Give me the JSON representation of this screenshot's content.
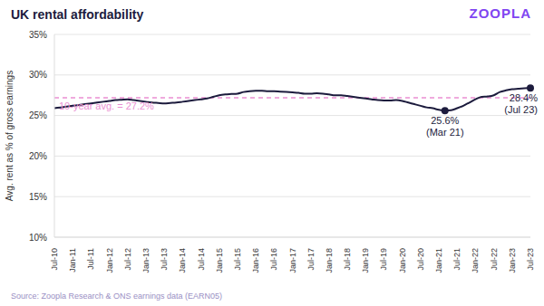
{
  "chart_data": {
    "type": "line",
    "title": "UK rental affordability",
    "logo": "ZOOPLA",
    "y_label": "Avg. rent as % of gross earnings",
    "source": "Source: Zoopla Research & ONS earnings data (EARN05)",
    "categories": [
      "Jul-10",
      null,
      null,
      "Jan-11",
      null,
      null,
      "Jul-11",
      null,
      null,
      "Jan-12",
      null,
      null,
      "Jul-12",
      null,
      null,
      "Jan-13",
      null,
      null,
      "Jul-13",
      null,
      null,
      "Jan-14",
      null,
      null,
      "Jul-14",
      null,
      null,
      "Jan-15",
      null,
      null,
      "Jul-15",
      null,
      null,
      "Jan-16",
      null,
      null,
      "Jul-16",
      null,
      null,
      "Jan-17",
      null,
      null,
      "Jul-17",
      null,
      null,
      "Jan-18",
      null,
      null,
      "Jul-18",
      null,
      null,
      "Jan-19",
      null,
      null,
      "Jul-19",
      null,
      null,
      "Jan-20",
      null,
      null,
      "Jul-20",
      null,
      null,
      "Jan-21",
      null,
      null,
      "Jul-21",
      null,
      null,
      "Jan-22",
      null,
      null,
      "Jul-22",
      null,
      null,
      "Jan-23",
      null,
      null,
      "Jul-23"
    ],
    "values": [
      25.9,
      26.0,
      26.1,
      26.2,
      26.3,
      26.4,
      26.5,
      26.6,
      26.7,
      26.8,
      26.9,
      26.95,
      27.0,
      26.9,
      26.8,
      26.7,
      26.6,
      26.55,
      26.5,
      26.55,
      26.6,
      26.7,
      26.8,
      26.9,
      27.0,
      27.1,
      27.3,
      27.5,
      27.6,
      27.65,
      27.7,
      27.9,
      28.0,
      28.05,
      28.05,
      28.0,
      28.0,
      27.95,
      27.9,
      27.85,
      27.8,
      27.7,
      27.7,
      27.75,
      27.7,
      27.6,
      27.5,
      27.5,
      27.4,
      27.3,
      27.2,
      27.1,
      27.0,
      26.9,
      26.85,
      26.85,
      26.9,
      26.8,
      26.6,
      26.4,
      26.2,
      26.0,
      25.9,
      25.7,
      25.6,
      25.65,
      25.9,
      26.2,
      26.6,
      27.0,
      27.3,
      27.35,
      27.5,
      27.9,
      28.1,
      28.25,
      28.3,
      28.35,
      28.4
    ],
    "color": "#1c1b3d",
    "line_style": "solid",
    "marker": "none",
    "ylim": [
      10,
      35
    ],
    "yticks": [
      {
        "value": 10,
        "label": "10%"
      },
      {
        "value": 15,
        "label": "15%"
      },
      {
        "value": 20,
        "label": "20%"
      },
      {
        "value": 25,
        "label": "25%"
      },
      {
        "value": 30,
        "label": "30%"
      },
      {
        "value": 35,
        "label": "35%"
      }
    ],
    "grid": true,
    "reference_line": {
      "value": 27.2,
      "label": "10-year avg. = 27.2%",
      "color": "#ea8fd2",
      "line_style": "dashed"
    },
    "annotations": [
      {
        "value": 25.6,
        "label": "25.6%",
        "date": "(Mar 21)"
      },
      {
        "value": 28.4,
        "label": "28.4%",
        "date": "(Jul 23)"
      }
    ]
  }
}
